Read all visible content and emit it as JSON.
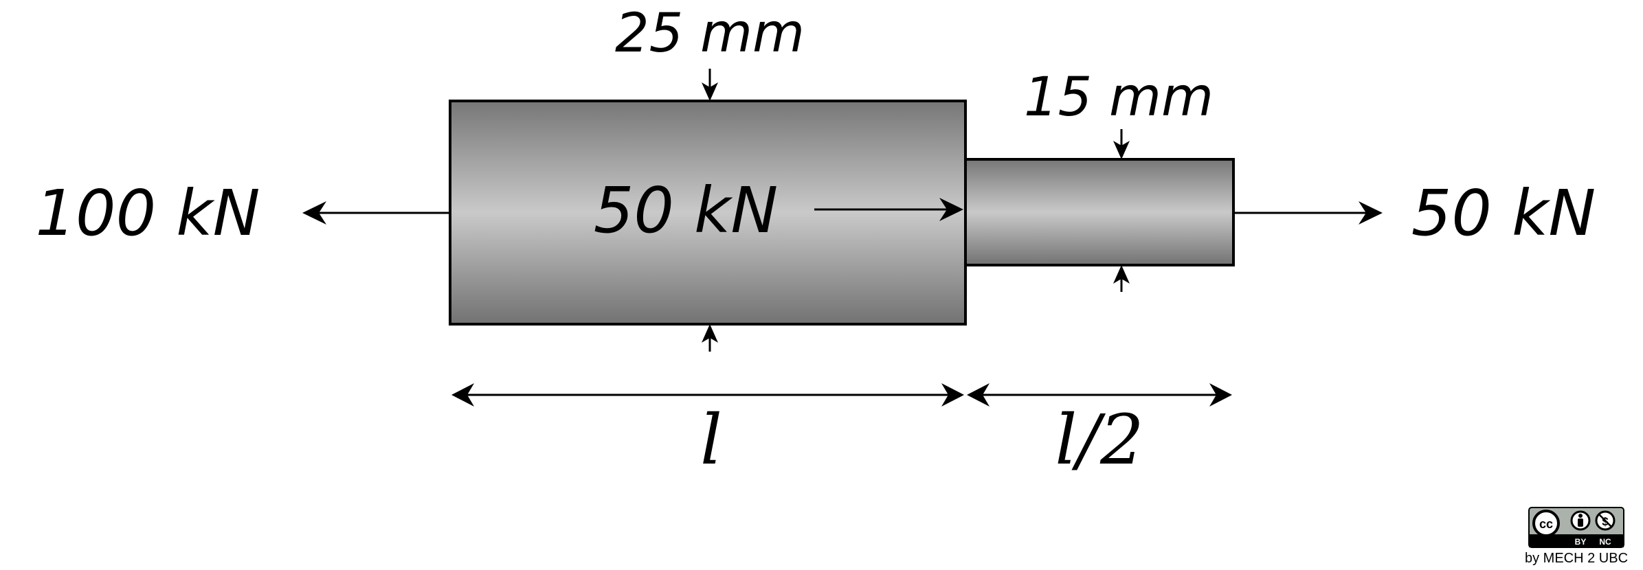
{
  "diagram": {
    "left_diameter": "25 mm",
    "right_diameter": "15 mm",
    "left_load": "100 kN",
    "internal_load": "50 kN",
    "right_load": "50 kN",
    "left_length": "l",
    "right_length": "l/2"
  },
  "license": {
    "cc_label": "cc",
    "by_label": "BY",
    "nc_label": "NC",
    "attribution": "by MECH 2 UBC"
  },
  "colors": {
    "rod_edge": "#6e6e6e",
    "rod_center": "#c8c8c8",
    "outline": "#000000"
  }
}
